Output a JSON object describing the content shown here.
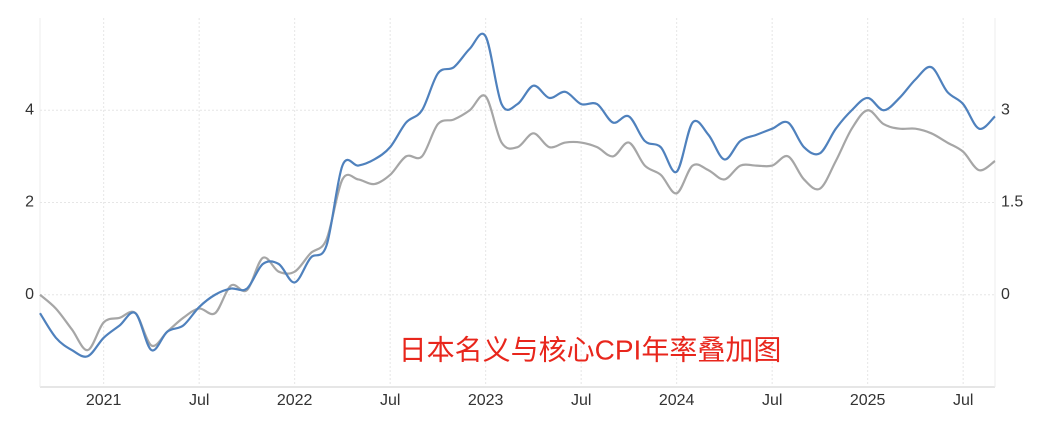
{
  "chart_data": {
    "type": "line",
    "annotation": "日本名义与核心CPI年率叠加图",
    "x": [
      "2020-09",
      "2020-10",
      "2020-11",
      "2020-12",
      "2021-01",
      "2021-02",
      "2021-03",
      "2021-04",
      "2021-05",
      "2021-06",
      "2021-07",
      "2021-08",
      "2021-09",
      "2021-10",
      "2021-11",
      "2021-12",
      "2022-01",
      "2022-02",
      "2022-03",
      "2022-04",
      "2022-05",
      "2022-06",
      "2022-07",
      "2022-08",
      "2022-09",
      "2022-10",
      "2022-11",
      "2022-12",
      "2023-01",
      "2023-02",
      "2023-03",
      "2023-04",
      "2023-05",
      "2023-06",
      "2023-07",
      "2023-08",
      "2023-09",
      "2023-10",
      "2023-11",
      "2023-12",
      "2024-01",
      "2024-02",
      "2024-03",
      "2024-04",
      "2024-05",
      "2024-06",
      "2024-07",
      "2024-08",
      "2024-09",
      "2024-10",
      "2024-11",
      "2024-12",
      "2025-01",
      "2025-02",
      "2025-03",
      "2025-04",
      "2025-05",
      "2025-06",
      "2025-07",
      "2025-08",
      "2025-09"
    ],
    "series": [
      {
        "color": "#a6a6a6",
        "axis": "y",
        "values": [
          0.0,
          -0.3,
          -0.75,
          -1.2,
          -0.6,
          -0.5,
          -0.4,
          -1.1,
          -0.8,
          -0.5,
          -0.3,
          -0.4,
          0.2,
          0.1,
          0.8,
          0.5,
          0.5,
          0.9,
          1.2,
          2.5,
          2.5,
          2.4,
          2.6,
          3.0,
          3.0,
          3.7,
          3.8,
          4.0,
          4.3,
          3.3,
          3.2,
          3.5,
          3.2,
          3.3,
          3.3,
          3.2,
          3.0,
          3.3,
          2.8,
          2.6,
          2.2,
          2.8,
          2.7,
          2.5,
          2.8,
          2.8,
          2.8,
          3.0,
          2.5,
          2.3,
          2.9,
          3.6,
          4.0,
          3.7,
          3.6,
          3.6,
          3.5,
          3.3,
          3.1,
          2.7,
          2.9
        ]
      },
      {
        "color": "#4f81bd",
        "axis": "y2",
        "values": [
          -0.3,
          -0.7,
          -0.9,
          -1.0,
          -0.7,
          -0.5,
          -0.3,
          -0.9,
          -0.6,
          -0.5,
          -0.2,
          0.0,
          0.1,
          0.1,
          0.5,
          0.5,
          0.2,
          0.6,
          0.8,
          2.1,
          2.1,
          2.2,
          2.4,
          2.8,
          3.0,
          3.6,
          3.7,
          4.0,
          4.2,
          3.1,
          3.1,
          3.4,
          3.2,
          3.3,
          3.1,
          3.1,
          2.8,
          2.9,
          2.5,
          2.4,
          2.0,
          2.8,
          2.6,
          2.2,
          2.5,
          2.6,
          2.7,
          2.8,
          2.4,
          2.3,
          2.7,
          3.0,
          3.2,
          3.0,
          3.2,
          3.5,
          3.7,
          3.3,
          3.1,
          2.7,
          2.9
        ]
      }
    ],
    "xlim": [
      "2020-09",
      "2025-09"
    ],
    "xticks": [
      {
        "value": "2021-01",
        "label": "2021"
      },
      {
        "value": "2021-07",
        "label": "Jul"
      },
      {
        "value": "2022-01",
        "label": "2022"
      },
      {
        "value": "2022-07",
        "label": "Jul"
      },
      {
        "value": "2023-01",
        "label": "2023"
      },
      {
        "value": "2023-07",
        "label": "Jul"
      },
      {
        "value": "2024-01",
        "label": "2024"
      },
      {
        "value": "2024-07",
        "label": "Jul"
      },
      {
        "value": "2025-01",
        "label": "2025"
      },
      {
        "value": "2025-07",
        "label": "Jul"
      }
    ],
    "ylim": [
      -2,
      6
    ],
    "yticks": [
      0,
      2,
      4
    ],
    "y2lim": [
      -1.5,
      4.5
    ],
    "y2ticks": [
      0,
      1.5,
      3
    ],
    "grid": true
  }
}
